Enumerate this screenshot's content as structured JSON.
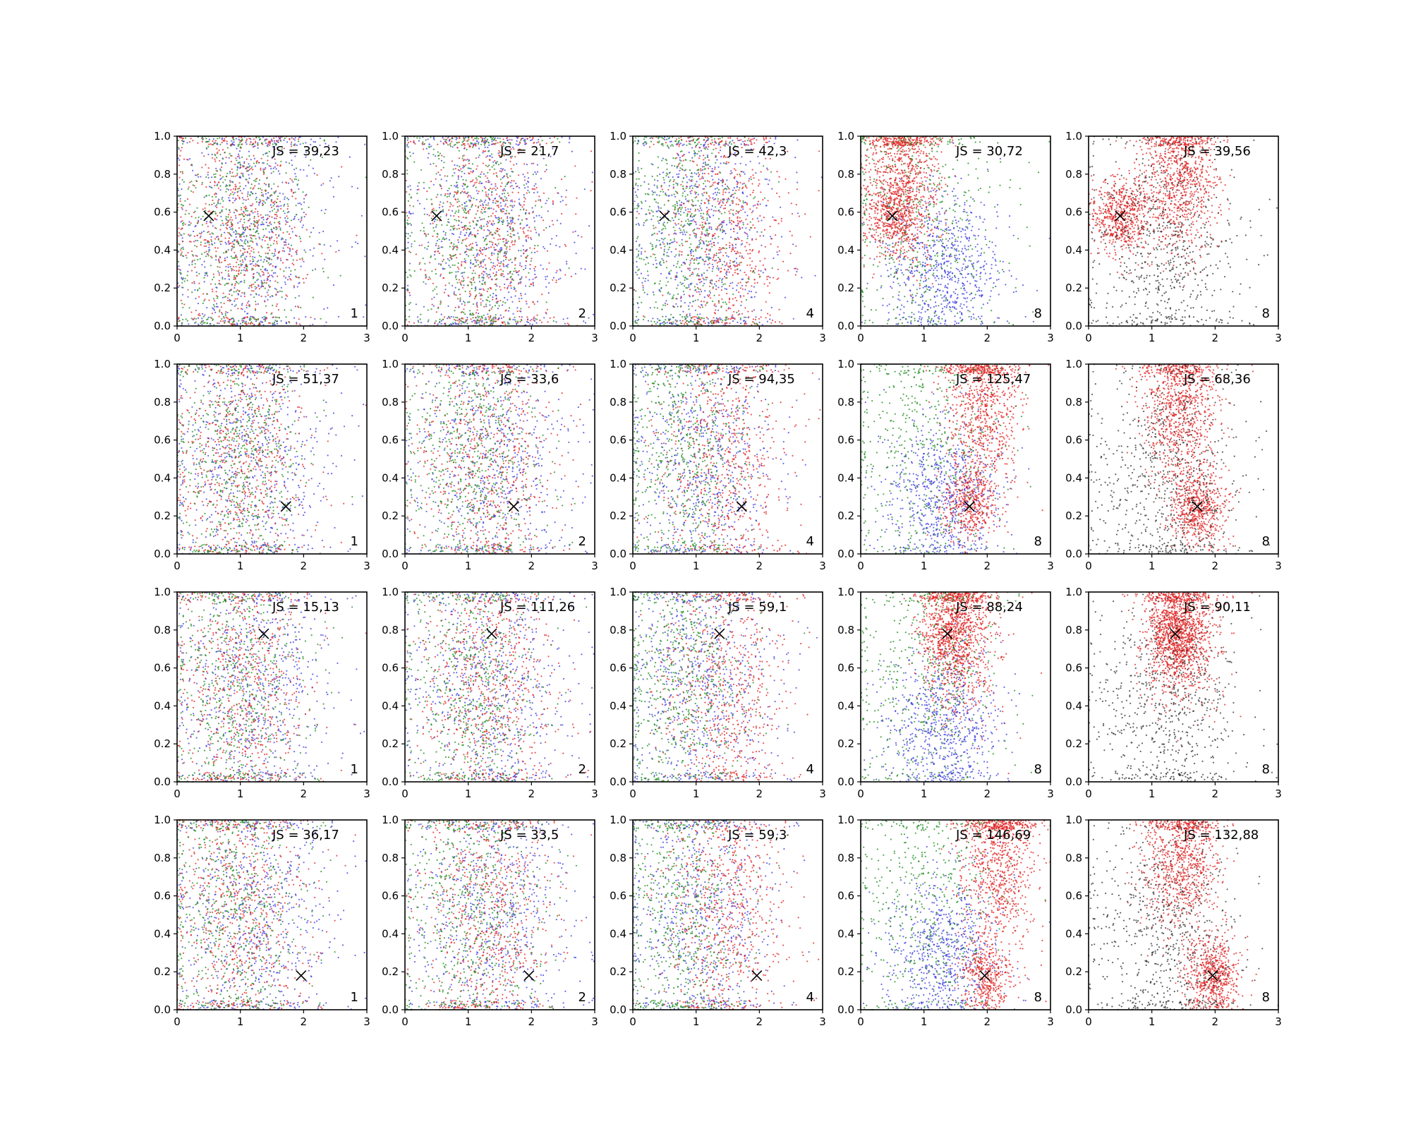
{
  "chart_data": {
    "type": "scatter",
    "layout": {
      "rows": 4,
      "cols": 5
    },
    "xlim": [
      0,
      3
    ],
    "ylim": [
      0,
      1
    ],
    "xticks": [
      "0",
      "1",
      "2",
      "3"
    ],
    "yticks": [
      "0.0",
      "0.2",
      "0.4",
      "0.6",
      "0.8",
      "1.0"
    ],
    "grid": false,
    "colors": {
      "blue": "#3a3adf",
      "red": "#e02020",
      "green": "#1a8a1a",
      "black": "#303030",
      "marker": "#000000"
    },
    "column_k_labels": [
      "1",
      "2",
      "4",
      "8",
      "8"
    ],
    "column_palettes": [
      [
        "blue",
        "red",
        "green"
      ],
      [
        "blue",
        "red",
        "green"
      ],
      [
        "blue",
        "red",
        "green"
      ],
      [
        "blue",
        "red",
        "green"
      ],
      [
        "black",
        "red"
      ]
    ],
    "rows": [
      {
        "marker": {
          "x": 0.5,
          "y": 0.58
        },
        "js_labels": [
          "JS = 39,23",
          "JS = 21,7",
          "JS = 42,3",
          "JS = 30,72",
          "JS = 39,56"
        ]
      },
      {
        "marker": {
          "x": 1.72,
          "y": 0.25
        },
        "js_labels": [
          "JS = 51,37",
          "JS = 33,6",
          "JS = 94,35",
          "JS = 125,47",
          "JS = 68,36"
        ]
      },
      {
        "marker": {
          "x": 1.37,
          "y": 0.78
        },
        "js_labels": [
          "JS = 15,13",
          "JS = 111,26",
          "JS = 59,1",
          "JS = 88,24",
          "JS = 90,11"
        ]
      },
      {
        "marker": {
          "x": 1.96,
          "y": 0.18
        },
        "js_labels": [
          "JS = 36,17",
          "JS = 33,5",
          "JS = 59,3",
          "JS = 146,69",
          "JS = 132,88"
        ]
      }
    ]
  }
}
